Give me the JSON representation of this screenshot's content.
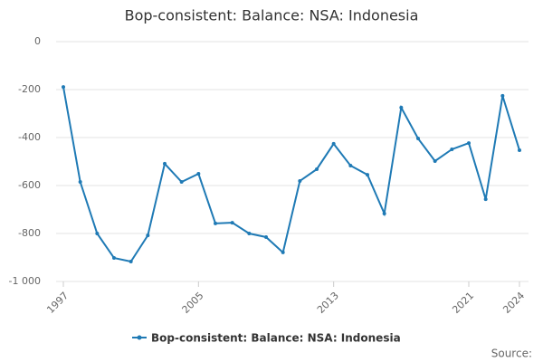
{
  "chart_data": {
    "type": "line",
    "title": "Bop-consistent: Balance: NSA: Indonesia",
    "x": [
      1997,
      1998,
      1999,
      2000,
      2001,
      2002,
      2003,
      2004,
      2005,
      2006,
      2007,
      2008,
      2009,
      2010,
      2011,
      2012,
      2013,
      2014,
      2015,
      2016,
      2017,
      2018,
      2019,
      2020,
      2021,
      2022,
      2023,
      2024
    ],
    "series": [
      {
        "name": "Bop-consistent: Balance: NSA: Indonesia",
        "color": "#1f7ab5",
        "values": [
          -189,
          -585,
          -800,
          -902,
          -917,
          -808,
          -509,
          -585,
          -551,
          -758,
          -755,
          -800,
          -815,
          -879,
          -581,
          -532,
          -426,
          -517,
          -555,
          -717,
          -275,
          -404,
          -498,
          -449,
          -423,
          -657,
          -226,
          -453
        ]
      }
    ],
    "xlim": [
      1997,
      2024
    ],
    "xticks": [
      1997,
      2005,
      2013,
      2021,
      2024
    ],
    "ylim": [
      -1000,
      0
    ],
    "yticks": [
      {
        "value": -1000,
        "label": "-1 000"
      },
      -800,
      -600,
      -400,
      -200,
      0
    ],
    "grid": true,
    "legend": "bottom",
    "source": "Source:"
  }
}
